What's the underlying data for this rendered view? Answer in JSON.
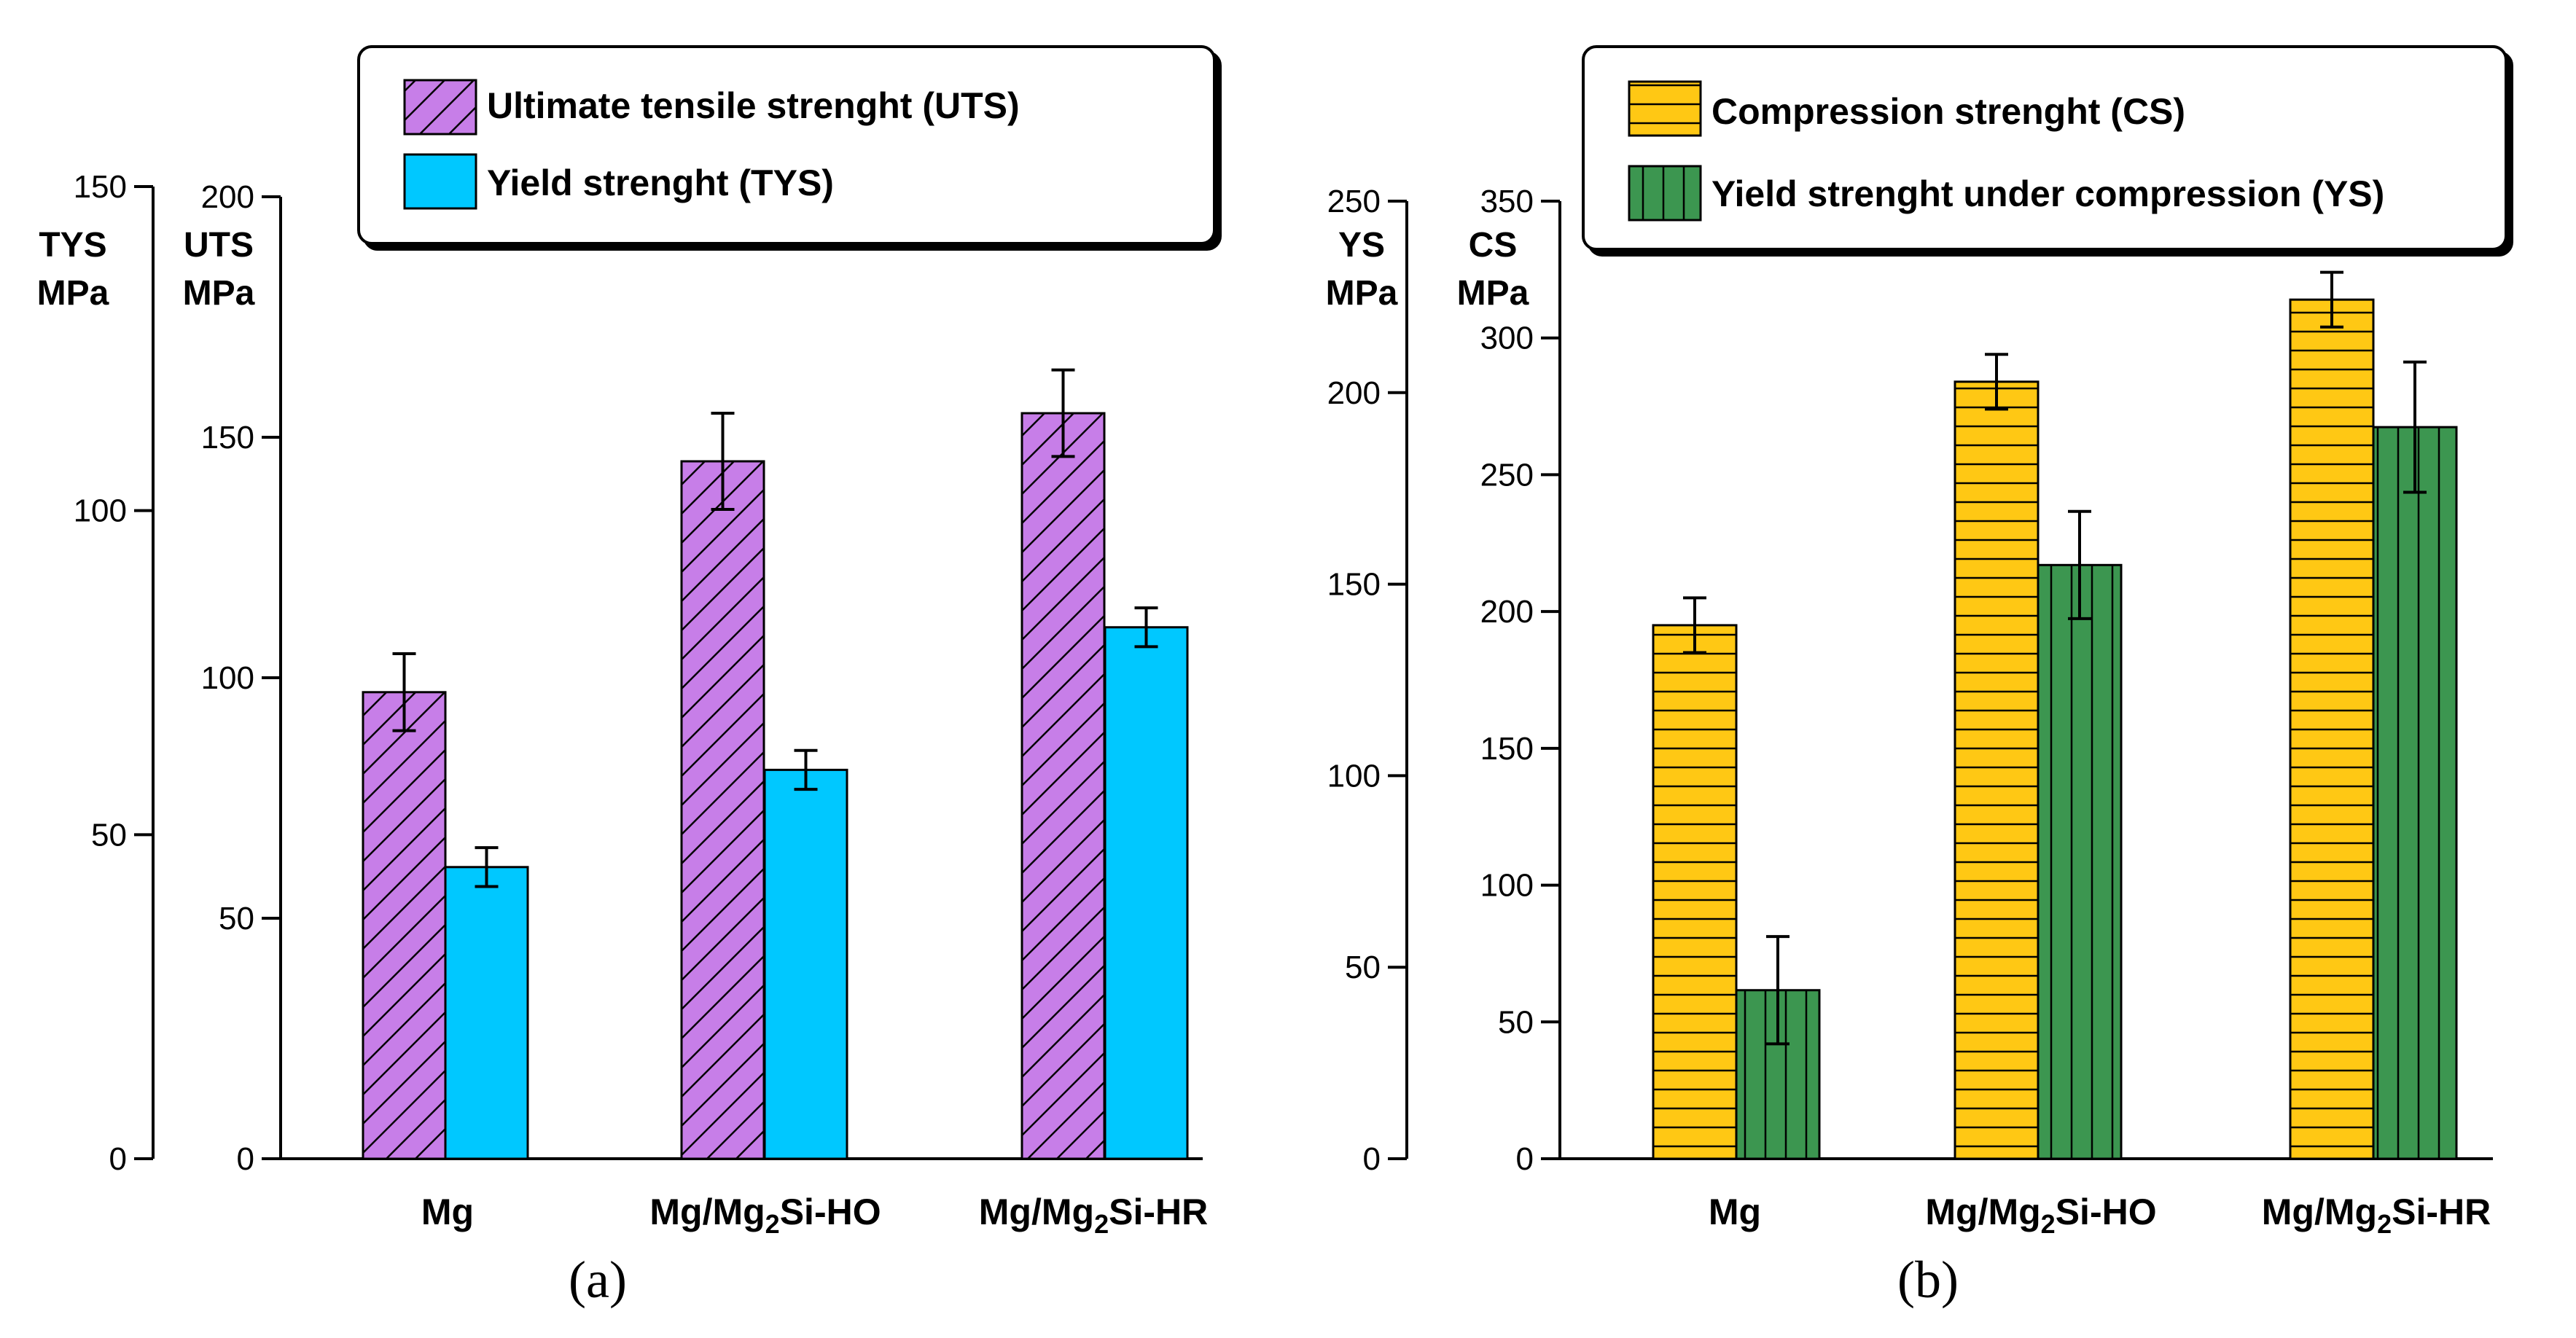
{
  "chart_data": [
    {
      "type": "bar",
      "panel_label": "(a)",
      "categories": [
        {
          "main": "Mg",
          "sub": "",
          "tail": ""
        },
        {
          "main": "Mg/Mg",
          "sub": "2",
          "tail": "Si-HO"
        },
        {
          "main": "Mg/Mg",
          "sub": "2",
          "tail": "Si-HR"
        }
      ],
      "left_axis": {
        "title_line1": "TYS",
        "title_line2": "MPa",
        "range": [
          0,
          150
        ],
        "ticks": [
          "0",
          "50",
          "100",
          "150"
        ]
      },
      "right_axis": {
        "title_line1": "UTS",
        "title_line2": "MPa",
        "range": [
          0,
          200
        ],
        "ticks": [
          "0",
          "50",
          "100",
          "150",
          "200"
        ]
      },
      "series": [
        {
          "name": "Ultimate tensile strenght (UTS)",
          "axis": "UTS",
          "color": "#c77ee8",
          "pattern": "diagonal",
          "values": [
            97,
            145,
            155
          ],
          "errors": [
            8,
            10,
            9
          ]
        },
        {
          "name": "Yield strenght (TYS)",
          "axis": "TYS",
          "color": "#00c8ff",
          "pattern": "solid",
          "values": [
            45,
            60,
            82
          ],
          "errors": [
            3,
            3,
            3
          ]
        }
      ]
    },
    {
      "type": "bar",
      "panel_label": "(b)",
      "categories": [
        {
          "main": "Mg",
          "sub": "",
          "tail": ""
        },
        {
          "main": "Mg/Mg",
          "sub": "2",
          "tail": "Si-HO"
        },
        {
          "main": "Mg/Mg",
          "sub": "2",
          "tail": "Si-HR"
        }
      ],
      "left_axis": {
        "title_line1": "YS",
        "title_line2": "MPa",
        "range": [
          0,
          250
        ],
        "ticks": [
          "0",
          "50",
          "100",
          "150",
          "200",
          "250"
        ]
      },
      "right_axis": {
        "title_line1": "CS",
        "title_line2": "MPa",
        "range": [
          0,
          350
        ],
        "ticks": [
          "0",
          "50",
          "100",
          "150",
          "200",
          "250",
          "300",
          "350"
        ]
      },
      "series": [
        {
          "name": "Compression strenght (CS)",
          "axis": "CS",
          "color": "#ffc814",
          "pattern": "horizontal",
          "values": [
            195,
            284,
            314
          ],
          "errors": [
            10,
            10,
            10
          ]
        },
        {
          "name": "Yield strenght under compression (YS)",
          "axis": "YS",
          "color": "#3c9650",
          "pattern": "vertical",
          "values": [
            44,
            155,
            191
          ],
          "errors": [
            14,
            14,
            17
          ]
        }
      ]
    }
  ]
}
